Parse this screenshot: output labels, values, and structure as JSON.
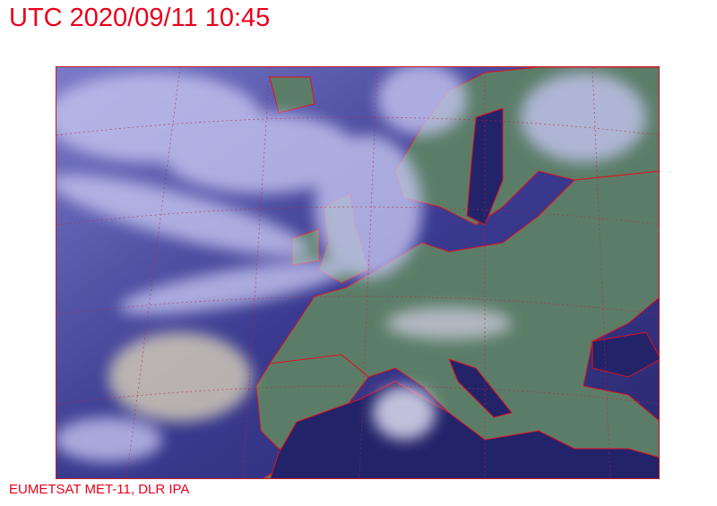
{
  "header": {
    "title": "UTC 2020/09/11 10:45"
  },
  "footer": {
    "credit": "EUMETSAT MET-11, DLR IPA"
  },
  "image": {
    "kind": "satellite composite over Europe and North Atlantic",
    "colors": {
      "sea": "#2c2c78",
      "land": "#5b7d68",
      "cloud": "#b4b4ea",
      "coastline": "#e01020",
      "text": "#e8001c"
    }
  }
}
